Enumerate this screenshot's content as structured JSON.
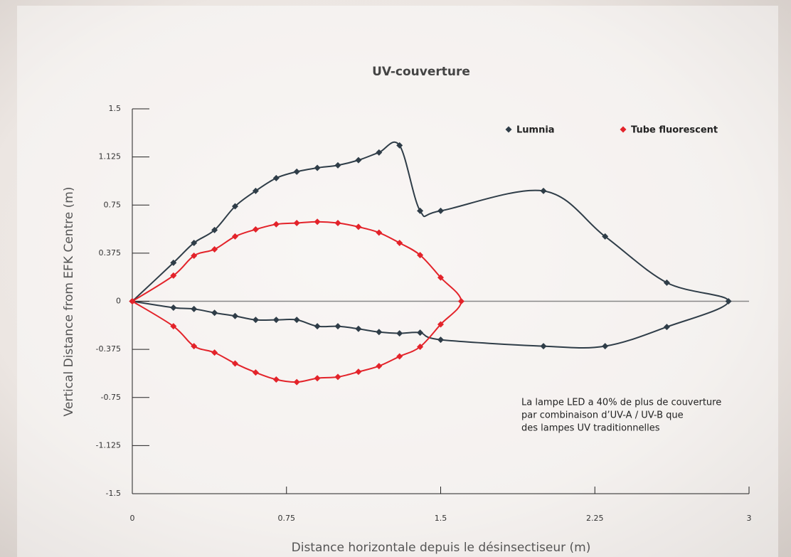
{
  "chart_data": {
    "type": "scatter-line",
    "title": "UV-couverture",
    "x_label": "Distance horizontale depuis le désinsectiseur (m)",
    "y_label": "Vertical Distance from EFK Centre (m)",
    "xlim": [
      0,
      3
    ],
    "ylim": [
      -1.5,
      1.5
    ],
    "xticks": [
      0,
      0.75,
      1.5,
      2.25,
      3
    ],
    "yticks": [
      1.5,
      1.125,
      0.75,
      0.375,
      0,
      -0.375,
      -0.75,
      -1.125,
      -1.5
    ],
    "annotation": [
      "La lampe LED a 40% de plus de couverture",
      "par combinaison d’UV-A / UV-B que",
      "des lampes UV traditionnelles"
    ],
    "series": [
      {
        "name": "Lumnia",
        "color": "#2f3d48",
        "x": [
          0,
          0.2,
          0.3,
          0.4,
          0.5,
          0.6,
          0.7,
          0.8,
          0.9,
          1.0,
          1.1,
          1.2,
          1.3,
          1.4,
          1.5,
          2.0,
          2.3,
          2.6,
          2.9,
          2.6,
          2.3,
          2.0,
          1.5,
          1.4,
          1.3,
          1.2,
          1.1,
          1.0,
          0.9,
          0.8,
          0.7,
          0.6,
          0.5,
          0.4,
          0.3,
          0.2,
          0
        ],
        "values": [
          0,
          0.3,
          0.455,
          0.555,
          0.74,
          0.86,
          0.96,
          1.01,
          1.04,
          1.06,
          1.1,
          1.16,
          1.215,
          0.705,
          0.705,
          0.86,
          0.505,
          0.145,
          0,
          -0.2,
          -0.35,
          -0.35,
          -0.3,
          -0.245,
          -0.25,
          -0.24,
          -0.215,
          -0.195,
          -0.195,
          -0.145,
          -0.145,
          -0.145,
          -0.115,
          -0.09,
          -0.06,
          -0.05,
          0
        ]
      },
      {
        "name": "Tube fluorescent",
        "color": "#e3232a",
        "x": [
          0,
          0.2,
          0.3,
          0.4,
          0.5,
          0.6,
          0.7,
          0.8,
          0.9,
          1.0,
          1.1,
          1.2,
          1.3,
          1.4,
          1.5,
          1.6,
          1.5,
          1.4,
          1.3,
          1.2,
          1.1,
          1.0,
          0.9,
          0.8,
          0.7,
          0.6,
          0.5,
          0.4,
          0.3,
          0.2,
          0
        ],
        "values": [
          0,
          0.2,
          0.355,
          0.405,
          0.505,
          0.56,
          0.6,
          0.61,
          0.62,
          0.61,
          0.58,
          0.535,
          0.455,
          0.36,
          0.185,
          0,
          -0.18,
          -0.355,
          -0.43,
          -0.505,
          -0.55,
          -0.59,
          -0.6,
          -0.63,
          -0.61,
          -0.555,
          -0.485,
          -0.4,
          -0.35,
          -0.195,
          0
        ]
      }
    ]
  }
}
